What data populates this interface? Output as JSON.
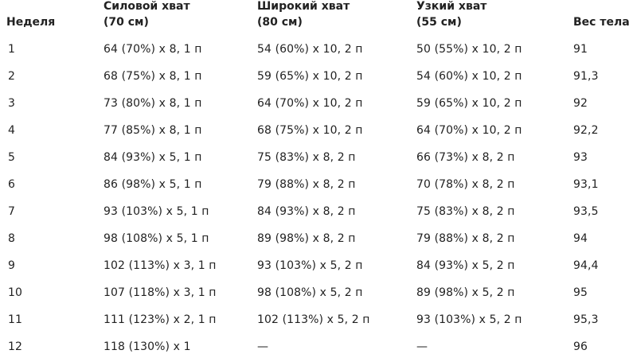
{
  "table": {
    "header": [
      {
        "title": "Неделя"
      },
      {
        "title": "Силовой хват",
        "subtitle": "(70 см)"
      },
      {
        "title": "Широкий хват",
        "subtitle": "(80 см)"
      },
      {
        "title": "Узкий хват",
        "subtitle": "(55 см)"
      },
      {
        "title": "Вес тела"
      }
    ],
    "rows": [
      [
        "1",
        "64 (70%) x 8, 1 п",
        "54 (60%) x 10, 2 п",
        "50 (55%) x 10, 2 п",
        "91"
      ],
      [
        "2",
        "68 (75%) x 8, 1 п",
        "59 (65%) x 10, 2 п",
        "54 (60%) x 10, 2 п",
        "91,3"
      ],
      [
        "3",
        "73 (80%) x 8, 1 п",
        "64 (70%) x 10, 2 п",
        "59 (65%) x 10, 2 п",
        "92"
      ],
      [
        "4",
        "77 (85%) x 8, 1 п",
        "68 (75%) x 10, 2 п",
        "64 (70%) x 10, 2 п",
        "92,2"
      ],
      [
        "5",
        "84 (93%) x 5, 1 п",
        "75 (83%) x 8, 2 п",
        "66 (73%) x 8, 2 п",
        "93"
      ],
      [
        "6",
        "86 (98%) x 5, 1 п",
        "79 (88%) x 8, 2 п",
        "70 (78%) x 8, 2 п",
        "93,1"
      ],
      [
        "7",
        "93 (103%) x 5, 1 п",
        "84 (93%) x 8, 2 п",
        "75 (83%) x 8, 2 п",
        "93,5"
      ],
      [
        "8",
        "98 (108%) x 5, 1 п",
        "89 (98%) x 8, 2 п",
        "79 (88%) x 8, 2 п",
        "94"
      ],
      [
        "9",
        "102 (113%) x 3, 1 п",
        "93 (103%) x 5, 2 п",
        "84 (93%) x 5, 2 п",
        "94,4"
      ],
      [
        "10",
        "107 (118%) x 3, 1 п",
        "98 (108%) x 5, 2 п",
        "89 (98%) x 5, 2 п",
        "95"
      ],
      [
        "11",
        "111 (123%) x 2, 1 п",
        "102 (113%) x 5, 2 п",
        "93 (103%) x 5, 2 п",
        "95,3"
      ],
      [
        "12",
        "118 (130%) x 1",
        "—",
        "—",
        "96"
      ]
    ]
  }
}
